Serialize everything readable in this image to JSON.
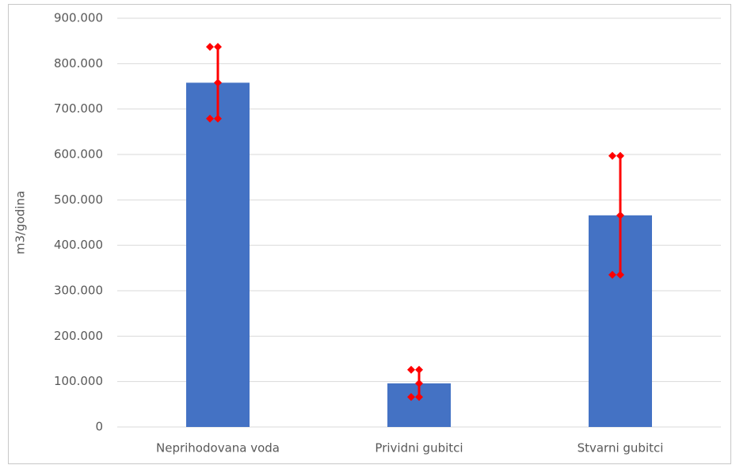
{
  "chart_data": {
    "type": "bar",
    "ylabel": "m3/godina",
    "categories": [
      "Neprihodovana voda",
      "Prividni gubitci",
      "Stvarni gubitci"
    ],
    "values": [
      758000,
      96000,
      466000
    ],
    "errors": [
      79000,
      30000,
      131000
    ],
    "color": "#4472c4",
    "error_color": "#ff0000",
    "ylim": [
      0,
      900000
    ],
    "yticks": [
      0,
      {
        "value": 100000,
        "label": "100.000"
      },
      {
        "value": 200000,
        "label": "200.000"
      },
      {
        "value": 300000,
        "label": "300.000"
      },
      {
        "value": 400000,
        "label": "400.000"
      },
      {
        "value": 500000,
        "label": "500.000"
      },
      {
        "value": 600000,
        "label": "600.000"
      },
      {
        "value": 700000,
        "label": "700.000"
      },
      {
        "value": 800000,
        "label": "800.000"
      },
      {
        "value": 900000,
        "label": "900.000"
      }
    ],
    "grid": true
  }
}
